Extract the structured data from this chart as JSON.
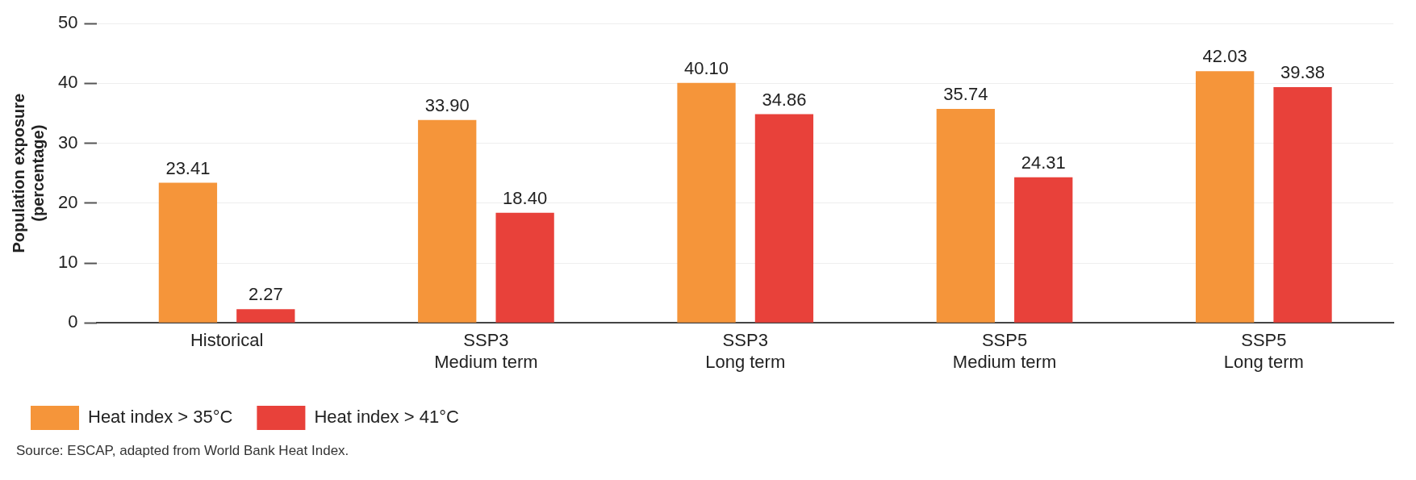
{
  "chart_data": {
    "type": "bar",
    "ylabel": "Population exposure\n(percentage)",
    "categories": [
      "Historical",
      "SSP3\nMedium term",
      "SSP3\nLong term",
      "SSP5\nMedium term",
      "SSP5\nLong term"
    ],
    "series": [
      {
        "name": "Heat index > 35°C",
        "color": "#f5953a",
        "values": [
          23.41,
          33.9,
          40.1,
          35.74,
          42.03
        ],
        "value_labels": [
          "23.41",
          "33.90",
          "40.10",
          "35.74",
          "42.03"
        ]
      },
      {
        "name": "Heat index > 41°C",
        "color": "#e8413a",
        "values": [
          2.27,
          18.4,
          34.86,
          24.31,
          39.38
        ],
        "value_labels": [
          "2.27",
          "18.40",
          "34.86",
          "24.31",
          "39.38"
        ]
      }
    ],
    "ylim": [
      0,
      50
    ],
    "yticks": [
      0,
      10,
      20,
      30,
      40,
      50
    ],
    "grid": "y",
    "legend": "bottom left",
    "annotations": [
      "Source: ESCAP, adapted from World Bank Heat Index."
    ]
  }
}
